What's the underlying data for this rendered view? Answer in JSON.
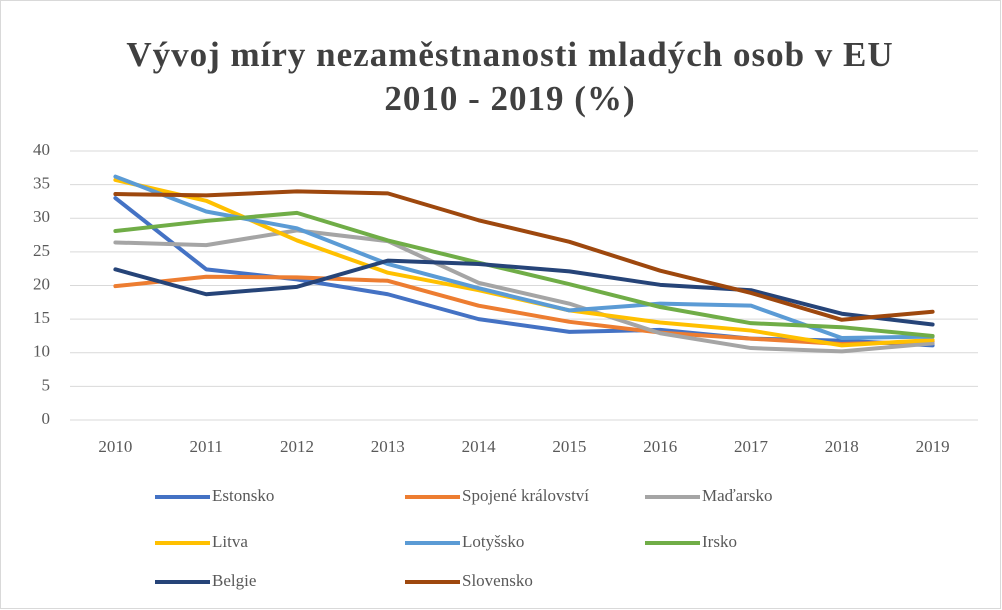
{
  "chart_data": {
    "type": "line",
    "title": [
      "Vývoj míry nezaměstnanosti mladých osob v EU",
      "2010 - 2019 (%)"
    ],
    "categories": [
      "2010",
      "2011",
      "2012",
      "2013",
      "2014",
      "2015",
      "2016",
      "2017",
      "2018",
      "2019"
    ],
    "ylim": [
      0,
      40
    ],
    "yticks": [
      0,
      5,
      10,
      15,
      20,
      25,
      30,
      35,
      40
    ],
    "grid": true,
    "legend": "bottom",
    "series": [
      {
        "name": "Estonsko",
        "color": "#4472c4",
        "values": [
          33.0,
          22.4,
          20.9,
          18.7,
          15.0,
          13.1,
          13.4,
          12.1,
          11.8,
          11.1
        ]
      },
      {
        "name": "Spojené království",
        "color": "#ed7d31",
        "values": [
          19.9,
          21.3,
          21.2,
          20.7,
          17.0,
          14.6,
          13.0,
          12.1,
          11.3,
          11.7
        ]
      },
      {
        "name": "Maďarsko",
        "color": "#a5a5a5",
        "values": [
          26.4,
          26.0,
          28.2,
          26.6,
          20.4,
          17.3,
          12.9,
          10.7,
          10.2,
          11.4
        ]
      },
      {
        "name": "Litva",
        "color": "#ffc000",
        "values": [
          35.7,
          32.6,
          26.7,
          21.9,
          19.3,
          16.3,
          14.5,
          13.3,
          11.1,
          11.9
        ]
      },
      {
        "name": "Lotyšsko",
        "color": "#5b9bd5",
        "values": [
          36.2,
          31.0,
          28.5,
          23.2,
          19.6,
          16.3,
          17.3,
          17.0,
          12.2,
          12.4
        ]
      },
      {
        "name": "Irsko",
        "color": "#70ad47",
        "values": [
          28.1,
          29.6,
          30.8,
          26.7,
          23.4,
          20.2,
          16.8,
          14.4,
          13.8,
          12.5
        ]
      },
      {
        "name": "Belgie",
        "color": "#264478",
        "values": [
          22.4,
          18.7,
          19.8,
          23.7,
          23.2,
          22.1,
          20.1,
          19.3,
          15.8,
          14.2
        ]
      },
      {
        "name": "Slovensko",
        "color": "#9e480e",
        "values": [
          33.6,
          33.4,
          34.0,
          33.7,
          29.7,
          26.5,
          22.2,
          18.9,
          14.9,
          16.1
        ]
      }
    ]
  }
}
